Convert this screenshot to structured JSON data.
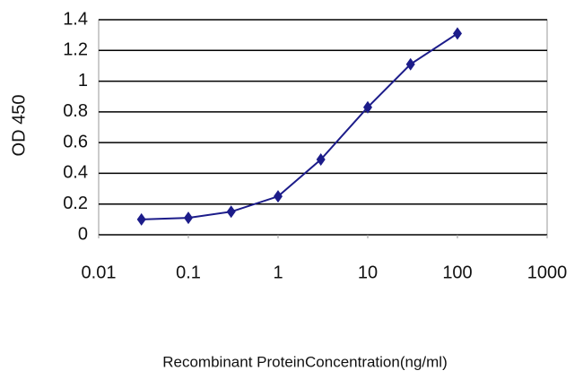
{
  "chart_data": {
    "type": "line",
    "x_label": "Recombinant ProteinConcentration(ng/ml)",
    "y_label": "OD 450",
    "x": [
      0.03,
      0.1,
      0.3,
      1,
      3,
      10,
      30,
      100
    ],
    "series": [
      {
        "color": "#1c1c8a",
        "values": [
          0.1,
          0.11,
          0.15,
          0.25,
          0.49,
          0.83,
          1.11,
          1.31
        ]
      }
    ],
    "xscale": "log",
    "xlim": [
      0.01,
      1000
    ],
    "xticks": [
      0.01,
      0.1,
      1,
      10,
      100,
      1000
    ],
    "ylim": [
      0,
      1.4
    ],
    "yticks": [
      0,
      0.2,
      0.4,
      0.6,
      0.8,
      1,
      1.2,
      1.4
    ],
    "grid": true
  }
}
